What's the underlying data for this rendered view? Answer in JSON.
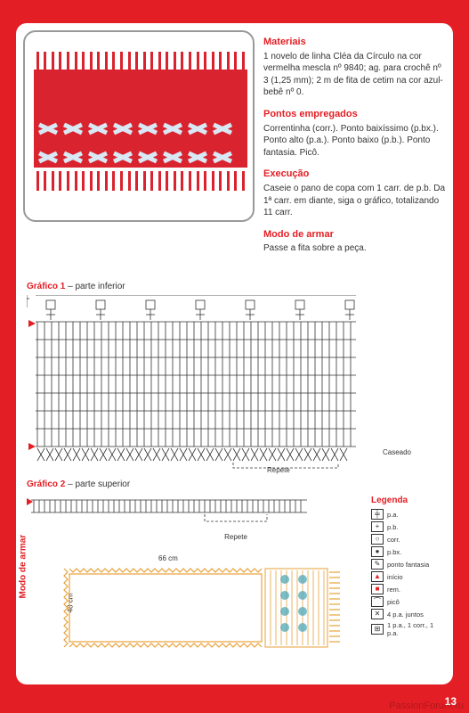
{
  "colors": {
    "page_bg": "#e31e24",
    "panel_bg": "#ffffff",
    "accent": "#e31e24",
    "text": "#333333",
    "chart_line": "#333333",
    "ribbon": "#d8e8f5",
    "red_crochet": "#d9232e",
    "orange": "#e8a23a",
    "teal": "#4fa8b8"
  },
  "page_number": "13",
  "watermark": "PassionForum.ru",
  "materials": {
    "heading": "Materiais",
    "body": "1 novelo de linha Cléa da Círculo na cor vermelha mescla nº 9840; ag. para crochê nº 3 (1,25 mm); 2 m de fita de cetim na cor azul-bebê nº 0."
  },
  "pontos": {
    "heading": "Pontos empregados",
    "body": "Correntinha (corr.). Ponto baixíssimo (p.bx.). Ponto alto (p.a.). Ponto baixo (p.b.). Ponto fantasia. Picô."
  },
  "execucao": {
    "heading": "Execução",
    "body": "Caseie o pano de copa com 1 carr. de p.b. Da 1ª carr. em diante, siga o gráfico, totalizando 11 carr."
  },
  "modo": {
    "heading": "Modo de armar",
    "body": "Passe a fita sobre a peça."
  },
  "chart1": {
    "title_a": "Gráfico 1",
    "title_b": " – parte inferior",
    "repete": "Repete",
    "caseado": "Caseado"
  },
  "chart2": {
    "title_a": "Gráfico 2",
    "title_b": " – parte superior",
    "repete": "Repete"
  },
  "modo_armar": {
    "label": "Modo de armar",
    "width_cm": "66 cm",
    "height_cm": "48 cm"
  },
  "legend": {
    "title": "Legenda",
    "items": [
      {
        "sym": "╪",
        "label": "p.a.",
        "cls": ""
      },
      {
        "sym": "+",
        "label": "p.b.",
        "cls": ""
      },
      {
        "sym": "○",
        "label": "corr.",
        "cls": ""
      },
      {
        "sym": "●",
        "label": "p.bx.",
        "cls": ""
      },
      {
        "sym": "✎",
        "label": "ponto fantasia",
        "cls": ""
      },
      {
        "sym": "▲",
        "label": "início",
        "cls": "red"
      },
      {
        "sym": "■",
        "label": "rem.",
        "cls": "red"
      },
      {
        "sym": "⌒",
        "label": "picô",
        "cls": ""
      },
      {
        "sym": "✕",
        "label": "4 p.a. juntos",
        "cls": ""
      },
      {
        "sym": "⊞",
        "label": "1 p.a., 1 corr., 1 p.a.",
        "cls": ""
      }
    ]
  }
}
